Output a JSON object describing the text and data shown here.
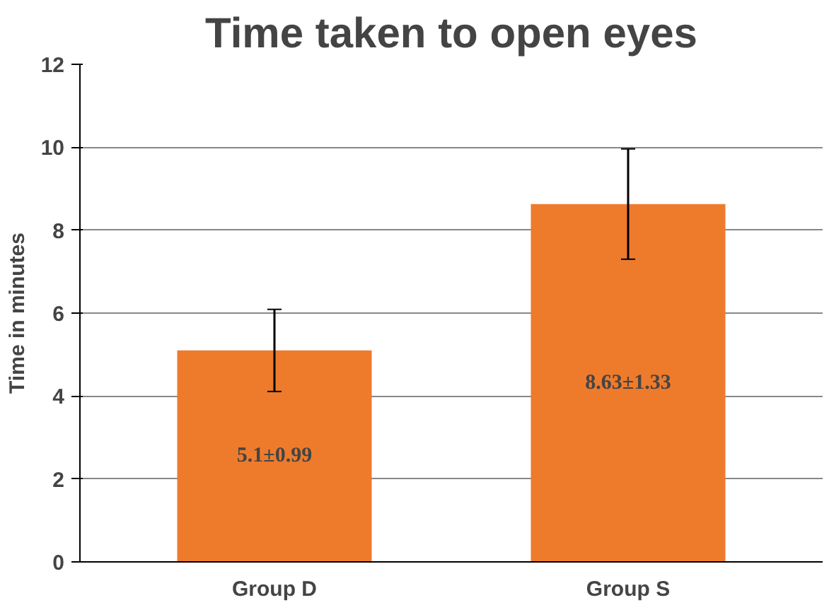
{
  "chart_data": {
    "type": "bar",
    "title": "Time taken to open eyes",
    "ylabel": "Time in minutes",
    "categories": [
      "Group D",
      "Group S"
    ],
    "values": [
      5.1,
      8.63
    ],
    "errors": [
      0.99,
      1.33
    ],
    "value_labels": [
      "5.1±0.99",
      "8.63±1.33"
    ],
    "color": "#ee7b2c",
    "ylim": [
      0,
      12
    ],
    "yticks": [
      0,
      2,
      4,
      6,
      8,
      10,
      12
    ],
    "grid": "y"
  }
}
